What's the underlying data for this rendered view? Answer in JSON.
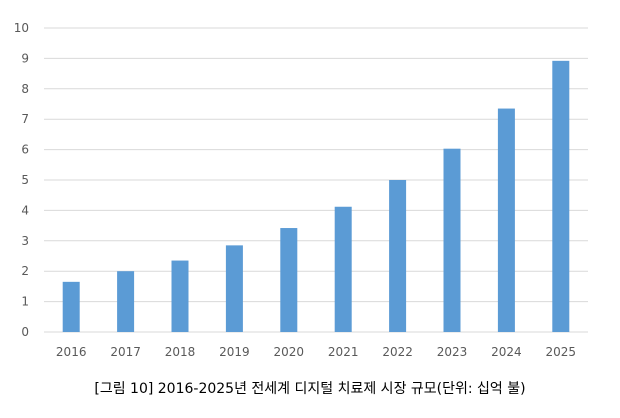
{
  "chart_data": {
    "type": "bar",
    "categories": [
      "2016",
      "2017",
      "2018",
      "2019",
      "2020",
      "2021",
      "2022",
      "2023",
      "2024",
      "2025"
    ],
    "values": [
      1.65,
      2.0,
      2.35,
      2.85,
      3.42,
      4.12,
      5.0,
      6.03,
      7.35,
      8.92
    ],
    "ylim": [
      0,
      10
    ],
    "yticks": [
      "0",
      "1",
      "2",
      "3",
      "4",
      "5",
      "6",
      "7",
      "8",
      "9",
      "10"
    ],
    "grid": true,
    "legend": "none",
    "bar_color": "#5b9bd5",
    "grid_color": "#d9d9d9",
    "caption": "[그림 10] 2016-2025년 전세계 디지털 치료제 시장 규모(단위: 십억 불)"
  }
}
